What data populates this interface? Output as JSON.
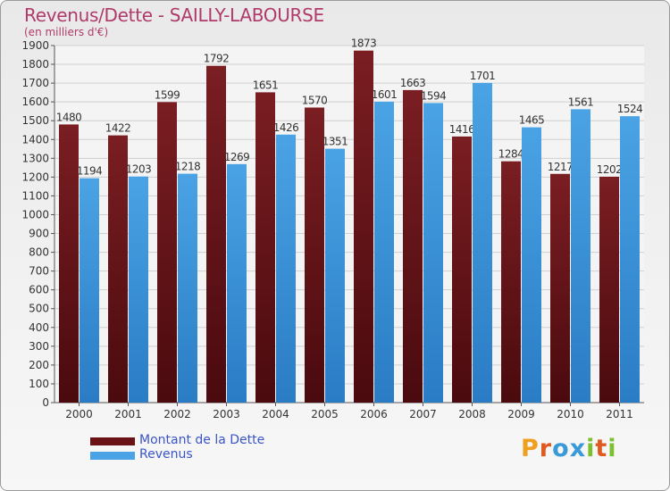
{
  "header": {
    "title": "Revenus/Dette - SAILLY-LABOURSE",
    "unit": "(en milliers d'€)"
  },
  "colors": {
    "debt": "#7a1e22",
    "debt_dark": "#4a0a0e",
    "revenue": "#4aa3e4",
    "revenue_dark": "#2a7cc4",
    "title": "#b03a6a"
  },
  "chart_data": {
    "type": "bar",
    "categories": [
      "2000",
      "2001",
      "2002",
      "2003",
      "2004",
      "2005",
      "2006",
      "2007",
      "2008",
      "2009",
      "2010",
      "2011"
    ],
    "series": [
      {
        "name": "Montant de la Dette",
        "values": [
          1480,
          1422,
          1599,
          1792,
          1651,
          1570,
          1873,
          1663,
          1416,
          1284,
          1217,
          1202
        ]
      },
      {
        "name": "Revenus",
        "values": [
          1194,
          1203,
          1218,
          1269,
          1426,
          1351,
          1601,
          1594,
          1701,
          1465,
          1561,
          1524
        ]
      }
    ],
    "ylim": [
      0,
      1900
    ],
    "ytick_step": 100,
    "grid": true,
    "legend_position": "bottom-left"
  },
  "legend": {
    "items": [
      {
        "label": "Montant de la Dette",
        "color": "#6b1216"
      },
      {
        "label": "Revenus",
        "color": "#4aa3e4"
      }
    ]
  },
  "logo": {
    "letters": [
      "P",
      "r",
      "o",
      "x",
      "i",
      "t",
      "i"
    ],
    "colors": [
      "#f0a020",
      "#e05a20",
      "#3a9ad8",
      "#3a9ad8",
      "#7cc030",
      "#e05a20",
      "#7cc030"
    ]
  }
}
